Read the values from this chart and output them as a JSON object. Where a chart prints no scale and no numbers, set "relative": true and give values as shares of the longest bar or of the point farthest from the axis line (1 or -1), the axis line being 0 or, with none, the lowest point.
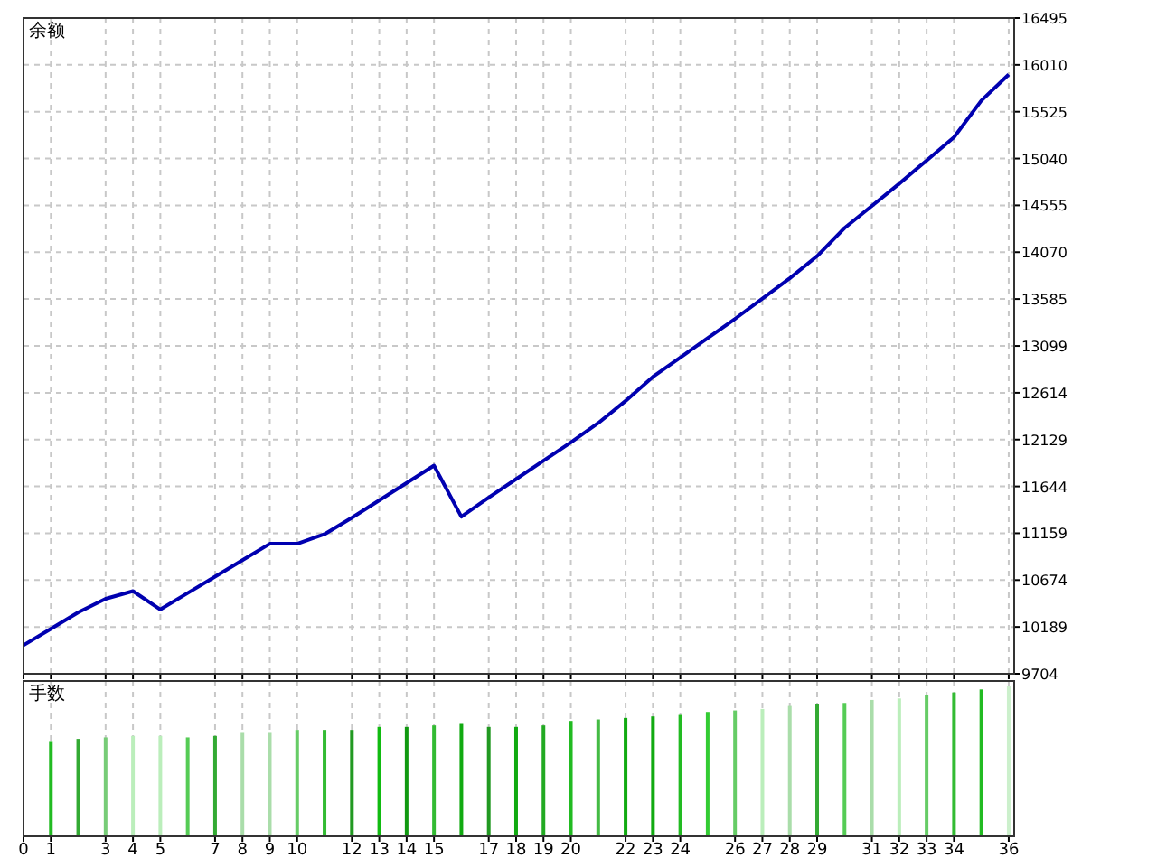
{
  "chart_data": [
    {
      "type": "line",
      "title": "余额",
      "x": [
        0,
        1,
        2,
        3,
        4,
        5,
        6,
        7,
        8,
        9,
        10,
        11,
        12,
        13,
        14,
        15,
        16,
        17,
        18,
        19,
        20,
        21,
        22,
        23,
        24,
        25,
        26,
        27,
        28,
        29,
        30,
        31,
        32,
        33,
        34,
        35,
        36
      ],
      "series": [
        {
          "color": "#0000b0",
          "values": [
            10000,
            10170,
            10340,
            10480,
            10560,
            10370,
            10540,
            10710,
            10880,
            11050,
            11050,
            11150,
            11320,
            11500,
            11680,
            11860,
            11330,
            11530,
            11720,
            11910,
            12100,
            12300,
            12530,
            12780,
            12980,
            13180,
            13380,
            13590,
            13800,
            14030,
            14320,
            14550,
            14780,
            15020,
            15260,
            15640,
            15910
          ]
        }
      ],
      "xlim": [
        0,
        36.2
      ],
      "xticks": [
        0,
        1,
        3,
        4,
        5,
        7,
        8,
        9,
        10,
        12,
        13,
        14,
        15,
        17,
        18,
        19,
        20,
        22,
        23,
        24,
        26,
        27,
        28,
        29,
        31,
        32,
        33,
        34,
        36
      ],
      "ylim": [
        9704,
        16495
      ],
      "yticks": [
        9704,
        10189,
        10674,
        11159,
        11644,
        12129,
        12614,
        13099,
        13585,
        14070,
        14555,
        15040,
        15525,
        16010,
        16495
      ],
      "tick_labels": "y",
      "grid": true
    },
    {
      "type": "bar",
      "title": "手数",
      "relative": true,
      "x": [
        1,
        2,
        3,
        4,
        5,
        6,
        7,
        8,
        9,
        10,
        11,
        12,
        13,
        14,
        15,
        16,
        17,
        18,
        19,
        20,
        21,
        22,
        23,
        24,
        25,
        26,
        27,
        28,
        29,
        30,
        31,
        32,
        33,
        34,
        35,
        36
      ],
      "values": [
        0.63,
        0.65,
        0.66,
        0.67,
        0.67,
        0.66,
        0.67,
        0.69,
        0.69,
        0.71,
        0.71,
        0.71,
        0.73,
        0.73,
        0.74,
        0.75,
        0.73,
        0.73,
        0.74,
        0.77,
        0.78,
        0.79,
        0.8,
        0.81,
        0.83,
        0.84,
        0.85,
        0.87,
        0.88,
        0.89,
        0.91,
        0.92,
        0.94,
        0.96,
        0.98,
        1
      ],
      "colors": [
        "#22bb22",
        "#33aa33",
        "#77cc77",
        "#bbeebb",
        "#bbeebb",
        "#55cc55",
        "#33aa33",
        "#aaddaa",
        "#aaddaa",
        "#66cc66",
        "#33bb33",
        "#229922",
        "#11bb11",
        "#119911",
        "#33bb33",
        "#11aa11",
        "#229922",
        "#11aa11",
        "#22aa22",
        "#22bb22",
        "#44bb44",
        "#11aa11",
        "#11aa11",
        "#22bb22",
        "#33cc33",
        "#66cc66",
        "#bbeebb",
        "#aaddaa",
        "#33aa33",
        "#55cc55",
        "#aaddaa",
        "#bbeebb",
        "#66cc66",
        "#33bb33",
        "#22bb22",
        "#ccf0cc"
      ],
      "xlim": [
        0,
        36.2
      ],
      "xticks": [
        0,
        1,
        3,
        4,
        5,
        7,
        8,
        9,
        10,
        12,
        13,
        14,
        15,
        17,
        18,
        19,
        20,
        22,
        23,
        24,
        26,
        27,
        28,
        29,
        31,
        32,
        33,
        34,
        36
      ],
      "tick_labels": "x",
      "grid": "x"
    }
  ]
}
